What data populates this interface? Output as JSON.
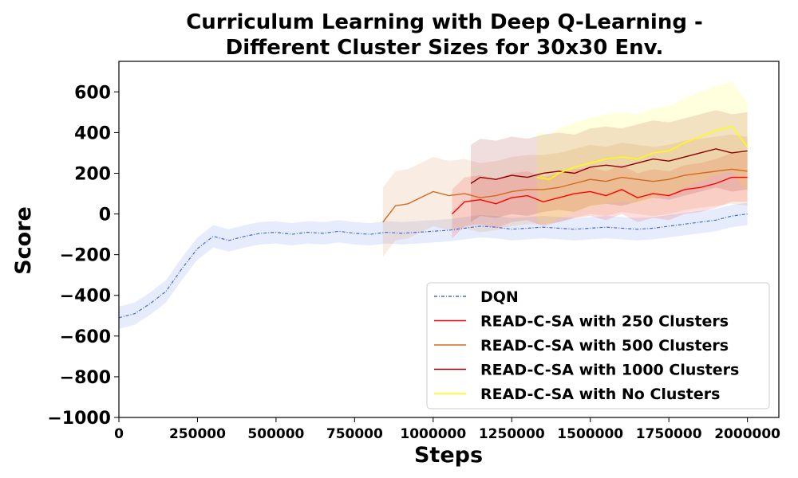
{
  "chart_data": {
    "type": "line",
    "title_line1": "Curriculum Learning with Deep Q-Learning -",
    "title_line2": "Different Cluster Sizes for 30x30 Env.",
    "xlabel": "Steps",
    "ylabel": "Score",
    "xlim": [
      0,
      2100000
    ],
    "ylim": [
      -1000,
      750
    ],
    "x_ticks": [
      0,
      250000,
      500000,
      750000,
      1000000,
      1250000,
      1500000,
      1750000,
      2000000
    ],
    "y_ticks": [
      -1000,
      -800,
      -600,
      -400,
      -200,
      0,
      200,
      400,
      600
    ],
    "x_tick_labels": [
      "0",
      "250000",
      "500000",
      "750000",
      "1000000",
      "1250000",
      "1500000",
      "1750000",
      "2000000"
    ],
    "y_tick_labels": [
      "−1000",
      "−800",
      "−600",
      "−400",
      "−200",
      "0",
      "200",
      "400",
      "600"
    ],
    "legend_position": "lower-right",
    "series": [
      {
        "name": "DQN",
        "color": "#4169e1",
        "style": "dashdot",
        "band_halfwidth": 55,
        "x": [
          0,
          50000,
          100000,
          150000,
          200000,
          250000,
          300000,
          350000,
          400000,
          450000,
          500000,
          550000,
          600000,
          650000,
          700000,
          750000,
          800000,
          850000,
          900000,
          950000,
          1000000,
          1050000,
          1100000,
          1150000,
          1200000,
          1250000,
          1300000,
          1350000,
          1400000,
          1450000,
          1500000,
          1550000,
          1600000,
          1650000,
          1700000,
          1750000,
          1800000,
          1850000,
          1900000,
          1950000,
          2000000
        ],
        "y": [
          -510,
          -490,
          -440,
          -380,
          -270,
          -170,
          -110,
          -130,
          -110,
          -95,
          -90,
          -100,
          -90,
          -95,
          -85,
          -95,
          -100,
          -90,
          -95,
          -90,
          -85,
          -80,
          -70,
          -60,
          -65,
          -75,
          -70,
          -65,
          -70,
          -75,
          -70,
          -65,
          -70,
          -75,
          -70,
          -60,
          -50,
          -40,
          -30,
          -10,
          0
        ]
      },
      {
        "name": "READ-C-SA with 250 Clusters",
        "color": "#ff0000",
        "style": "solid",
        "band_halfwidth": 120,
        "x": [
          1060000,
          1100000,
          1150000,
          1200000,
          1250000,
          1300000,
          1350000,
          1400000,
          1450000,
          1500000,
          1550000,
          1600000,
          1650000,
          1700000,
          1750000,
          1800000,
          1850000,
          1900000,
          1950000,
          2000000
        ],
        "y": [
          0,
          60,
          70,
          50,
          80,
          90,
          60,
          80,
          100,
          110,
          90,
          120,
          80,
          100,
          90,
          120,
          130,
          150,
          180,
          180
        ]
      },
      {
        "name": "READ-C-SA with 500 Clusters",
        "color": "#d2691e",
        "style": "solid",
        "band_halfwidth": 170,
        "x": [
          840000,
          880000,
          920000,
          960000,
          1000000,
          1050000,
          1100000,
          1150000,
          1200000,
          1250000,
          1300000,
          1350000,
          1400000,
          1450000,
          1500000,
          1550000,
          1600000,
          1650000,
          1700000,
          1750000,
          1800000,
          1850000,
          1900000,
          1950000,
          2000000
        ],
        "y": [
          -40,
          40,
          50,
          80,
          110,
          90,
          100,
          80,
          90,
          110,
          120,
          120,
          130,
          150,
          170,
          160,
          180,
          170,
          160,
          170,
          190,
          200,
          210,
          220,
          210
        ]
      },
      {
        "name": "READ-C-SA with 1000 Clusters",
        "color": "#8b0000",
        "style": "solid",
        "band_halfwidth": 190,
        "x": [
          1120000,
          1150000,
          1200000,
          1250000,
          1300000,
          1350000,
          1400000,
          1450000,
          1500000,
          1550000,
          1600000,
          1650000,
          1700000,
          1750000,
          1800000,
          1850000,
          1900000,
          1950000,
          2000000
        ],
        "y": [
          150,
          180,
          170,
          190,
          180,
          200,
          210,
          200,
          230,
          240,
          230,
          250,
          270,
          260,
          280,
          300,
          320,
          300,
          310
        ]
      },
      {
        "name": "READ-C-SA with No Clusters",
        "color": "#ffff00",
        "style": "solid",
        "band_halfwidth": 220,
        "x": [
          1330000,
          1370000,
          1400000,
          1450000,
          1500000,
          1550000,
          1600000,
          1650000,
          1700000,
          1750000,
          1800000,
          1850000,
          1900000,
          1950000,
          2000000
        ],
        "y": [
          180,
          170,
          200,
          230,
          250,
          270,
          280,
          270,
          300,
          310,
          350,
          380,
          410,
          430,
          330
        ]
      }
    ]
  }
}
